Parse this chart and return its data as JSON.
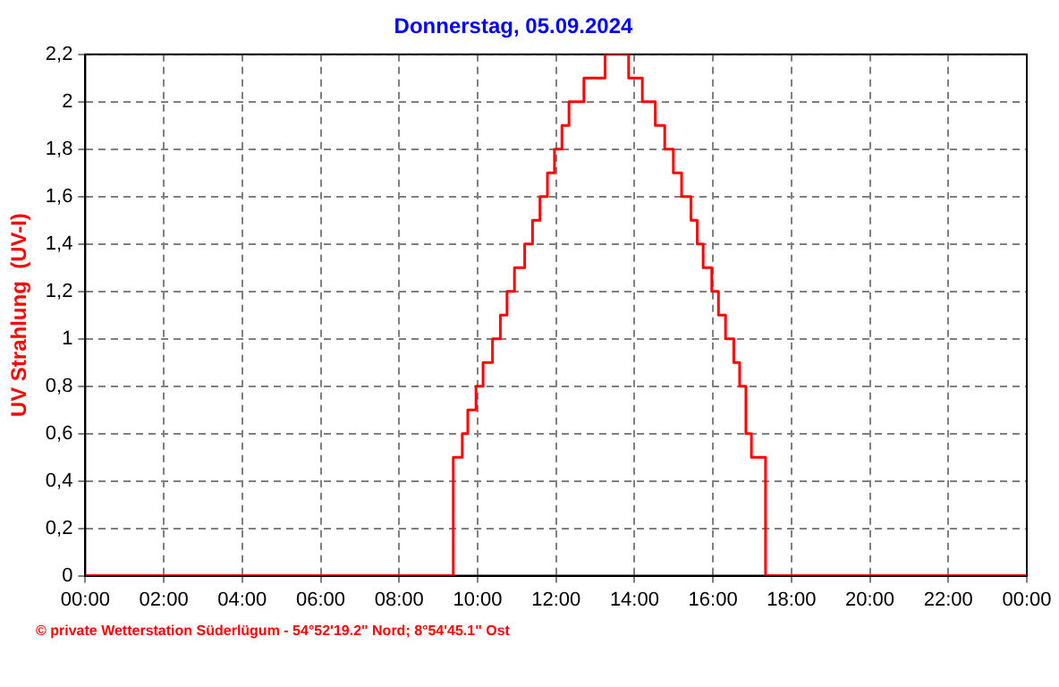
{
  "chart_data": {
    "type": "step",
    "title": "Donnerstag, 05.09.2024",
    "ylabel": "UV Strahlung  (UV-I)",
    "x": [
      0,
      9.38,
      9.61,
      9.75,
      9.96,
      10.14,
      10.38,
      10.58,
      10.75,
      10.94,
      11.2,
      11.4,
      11.59,
      11.78,
      11.96,
      12.15,
      12.33,
      12.71,
      13.25,
      13.85,
      14.2,
      14.53,
      14.77,
      14.99,
      15.2,
      15.44,
      15.6,
      15.75,
      15.97,
      16.14,
      16.32,
      16.53,
      16.68,
      16.84,
      16.98,
      17.34,
      24
    ],
    "series": [
      {
        "color": "#ff0000",
        "values": [
          0,
          0.5,
          0.6,
          0.7,
          0.8,
          0.9,
          1.0,
          1.1,
          1.2,
          1.3,
          1.4,
          1.5,
          1.6,
          1.7,
          1.8,
          1.9,
          2.0,
          2.1,
          2.2,
          2.1,
          2.0,
          1.9,
          1.8,
          1.7,
          1.6,
          1.5,
          1.4,
          1.3,
          1.2,
          1.1,
          1.0,
          0.9,
          0.8,
          0.6,
          0.5,
          0,
          0
        ]
      }
    ],
    "xlim": [
      0,
      24
    ],
    "xticks": [
      {
        "value": 0,
        "label": "00:00"
      },
      {
        "value": 2,
        "label": "02:00"
      },
      {
        "value": 4,
        "label": "04:00"
      },
      {
        "value": 6,
        "label": "06:00"
      },
      {
        "value": 8,
        "label": "08:00"
      },
      {
        "value": 10,
        "label": "10:00"
      },
      {
        "value": 12,
        "label": "12:00"
      },
      {
        "value": 14,
        "label": "14:00"
      },
      {
        "value": 16,
        "label": "16:00"
      },
      {
        "value": 18,
        "label": "18:00"
      },
      {
        "value": 20,
        "label": "20:00"
      },
      {
        "value": 22,
        "label": "22:00"
      },
      {
        "value": 24,
        "label": "00:00"
      }
    ],
    "ylim": [
      0,
      2.2
    ],
    "yticks": [
      0,
      {
        "value": 0.2,
        "label": "0,2"
      },
      {
        "value": 0.4,
        "label": "0,4"
      },
      {
        "value": 0.6,
        "label": "0,6"
      },
      {
        "value": 0.8,
        "label": "0,8"
      },
      1,
      {
        "value": 1.2,
        "label": "1,2"
      },
      {
        "value": 1.4,
        "label": "1,4"
      },
      {
        "value": 1.6,
        "label": "1,6"
      },
      {
        "value": 1.8,
        "label": "1,8"
      },
      2,
      {
        "value": 2.2,
        "label": "2,2"
      }
    ],
    "grid": true,
    "legend": false,
    "annotations": [
      "© private Wetterstation Süderlügum - 54°52'19.2\" Nord; 8°54'45.1\" Ost"
    ]
  }
}
